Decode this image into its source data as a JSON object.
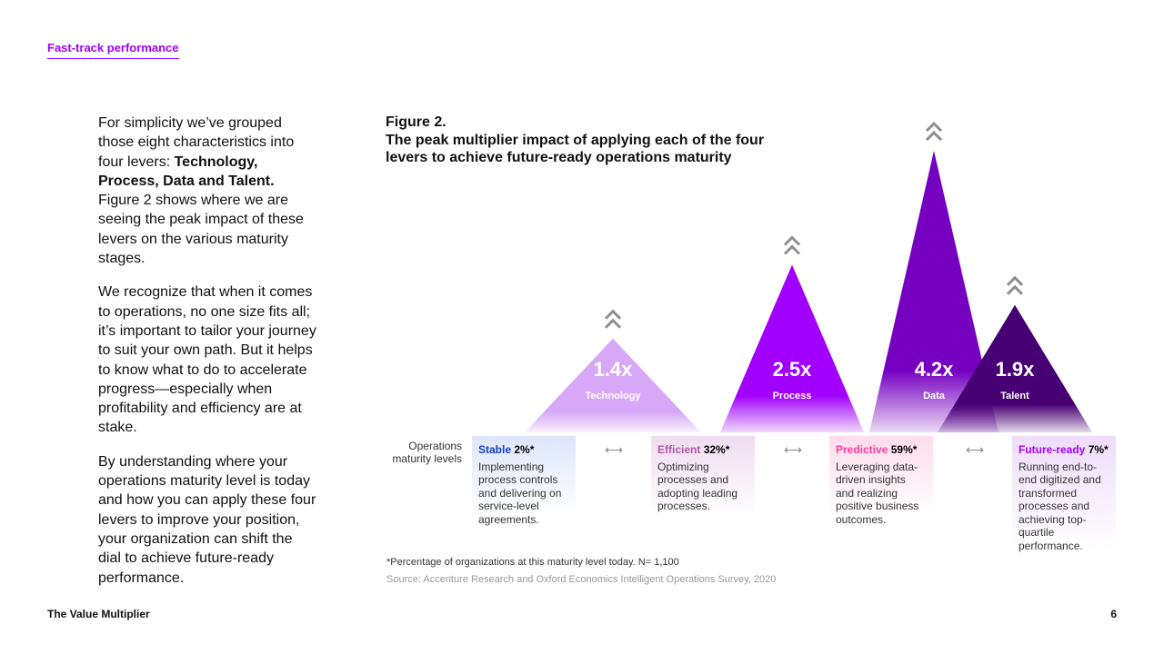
{
  "header": {
    "section_link": "Fast-track performance"
  },
  "body_text": {
    "p1_a": "For simplicity we’ve grouped those eight characteristics into four levers: ",
    "p1_bold": "Technology, Process, Data and Talent.",
    "p1_b": " Figure 2 shows where we are seeing the peak impact of these levers on the various maturity stages.",
    "p2": "We recognize that when it comes to operations, no one size fits all; it’s important to tailor your journey to suit your own path. But it helps to know what to do to accelerate progress—especially when profitability and efficiency are at stake.",
    "p3": "By understanding where your operations maturity level is today and how you can apply these four levers to improve your position, your organization can shift the dial to achieve future-ready performance."
  },
  "figure": {
    "label": "Figure 2.",
    "title": "The peak multiplier impact of applying each of the four levers to achieve future-ready operations maturity",
    "levels_caption": "Operations maturity levels",
    "footnote": "*Percentage of organizations at this maturity level today. N= 1,100",
    "source": "Source: Accenture Research and Oxford Economics Intelligent Operations Survey, 2020"
  },
  "chart_data": {
    "type": "triangle-peaks",
    "series": [
      {
        "name": "Technology",
        "value": 1.4,
        "label": "1.4x",
        "color": "#d6a8f7"
      },
      {
        "name": "Process",
        "value": 2.5,
        "label": "2.5x",
        "color": "#a100ff"
      },
      {
        "name": "Data",
        "value": 4.2,
        "label": "4.2x",
        "color": "#7500c0"
      },
      {
        "name": "Talent",
        "value": 1.9,
        "label": "1.9x",
        "color": "#460073"
      }
    ],
    "levels": [
      {
        "name": "Stable",
        "pct_label": "2%*",
        "pct": 2,
        "color": "#1a40c8",
        "bg": "#dde6fb",
        "description": "Implementing process controls and delivering on service-level agreements."
      },
      {
        "name": "Efficient",
        "pct_label": "32%*",
        "pct": 32,
        "color": "#b455aa",
        "bg": "#f0dcef",
        "description": "Optimizing processes and adopting leading processes."
      },
      {
        "name": "Predictive",
        "pct_label": "59%*",
        "pct": 59,
        "color": "#ff3ca0",
        "bg": "#ffdcec",
        "description": "Leveraging data-driven insights and realizing positive business outcomes."
      },
      {
        "name": "Future-ready",
        "pct_label": "7%*",
        "pct": 7,
        "color": "#a100ff",
        "bg": "#efdcfb",
        "description": "Running end-to-end digitized and transformed processes and achieving top-quartile performance."
      }
    ]
  },
  "footer": {
    "title": "The Value Multiplier",
    "page": "6"
  },
  "colors": {
    "accent": "#a100ff"
  }
}
